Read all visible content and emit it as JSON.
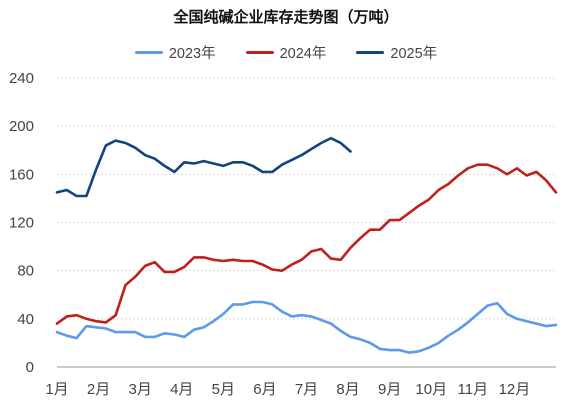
{
  "chart_data": {
    "type": "line",
    "title": "全国纯碱企业库存走势图（万吨）",
    "xlabel": "",
    "ylabel": "",
    "x_tick_labels": [
      "1月",
      "2月",
      "3月",
      "4月",
      "5月",
      "6月",
      "7月",
      "8月",
      "9月",
      "10月",
      "11月",
      "12月"
    ],
    "y_tick_labels": [
      "0",
      "40",
      "80",
      "120",
      "160",
      "200",
      "240"
    ],
    "ylim": [
      0,
      240
    ],
    "y_ticks": [
      0,
      40,
      80,
      120,
      160,
      200,
      240
    ],
    "grid": true,
    "legend_position": "top",
    "x_unit": "week",
    "series": [
      {
        "name": "2023年",
        "color": "#5b9bea",
        "values": [
          29,
          26,
          24,
          34,
          33,
          32,
          29,
          29,
          29,
          25,
          25,
          28,
          27,
          25,
          31,
          33,
          38,
          44,
          52,
          52,
          54,
          54,
          52,
          46,
          42,
          43,
          42,
          39,
          36,
          30,
          25,
          23,
          20,
          15,
          14,
          14,
          12,
          13,
          16,
          20,
          26,
          31,
          37,
          44,
          51,
          53,
          44,
          40,
          38,
          36,
          34,
          35
        ]
      },
      {
        "name": "2024年",
        "color": "#c0201a",
        "values": [
          36,
          42,
          43,
          40,
          38,
          37,
          43,
          68,
          75,
          84,
          87,
          79,
          79,
          83,
          91,
          91,
          89,
          88,
          89,
          88,
          88,
          85,
          81,
          80,
          85,
          89,
          96,
          98,
          90,
          89,
          99,
          107,
          114,
          114,
          122,
          122,
          128,
          134,
          139,
          147,
          152,
          159,
          165,
          168,
          168,
          165,
          160,
          165,
          159,
          162,
          155,
          145
        ]
      },
      {
        "name": "2025年",
        "color": "#14447e",
        "values": [
          145,
          147,
          142,
          142,
          164,
          184,
          188,
          186,
          182,
          176,
          173,
          167,
          162,
          170,
          169,
          171,
          169,
          167,
          170,
          170,
          167,
          162,
          162,
          168,
          172,
          176,
          181,
          186,
          190,
          186,
          179
        ]
      }
    ]
  }
}
